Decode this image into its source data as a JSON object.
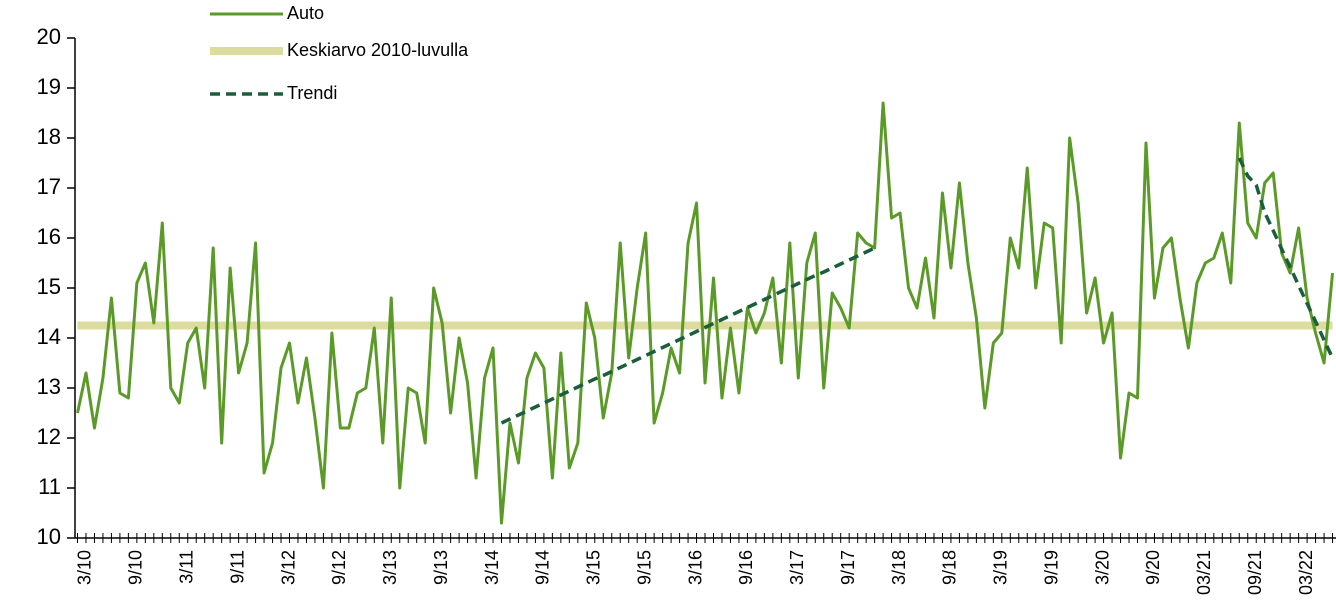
{
  "chart_data": {
    "type": "line",
    "categories": [
      null,
      "3/10",
      null,
      null,
      null,
      null,
      null,
      "9/10",
      null,
      null,
      null,
      null,
      null,
      "3/11",
      null,
      null,
      null,
      null,
      null,
      "9/11",
      null,
      null,
      null,
      null,
      null,
      "3/12",
      null,
      null,
      null,
      null,
      null,
      "9/12",
      null,
      null,
      null,
      null,
      null,
      "3/13",
      null,
      null,
      null,
      null,
      null,
      "9/13",
      null,
      null,
      null,
      null,
      null,
      "3/14",
      null,
      null,
      null,
      null,
      null,
      "9/14",
      null,
      null,
      null,
      null,
      null,
      "3/15",
      null,
      null,
      null,
      null,
      null,
      "9/15",
      null,
      null,
      null,
      null,
      null,
      "3/16",
      null,
      null,
      null,
      null,
      null,
      "9/16",
      null,
      null,
      null,
      null,
      null,
      "3/17",
      null,
      null,
      null,
      null,
      null,
      "9/17",
      null,
      null,
      null,
      null,
      null,
      "3/18",
      null,
      null,
      null,
      null,
      null,
      "9/18",
      null,
      null,
      null,
      null,
      null,
      "3/19",
      null,
      null,
      null,
      null,
      null,
      "9/19",
      null,
      null,
      null,
      null,
      null,
      "3/20",
      null,
      null,
      null,
      null,
      null,
      "9/20",
      null,
      null,
      null,
      null,
      null,
      "03/21",
      null,
      null,
      null,
      null,
      null,
      "09/21",
      null,
      null,
      null,
      null,
      null,
      "03/22",
      null,
      null,
      null
    ],
    "series": [
      {
        "name": "Auto",
        "color": "#5b9a28",
        "line_width": 3,
        "dash": "solid",
        "values": [
          12.5,
          13.3,
          12.2,
          13.2,
          14.8,
          12.9,
          12.8,
          15.1,
          15.5,
          14.3,
          16.3,
          13.0,
          12.7,
          13.9,
          14.2,
          13.0,
          15.8,
          11.9,
          15.4,
          13.3,
          13.9,
          15.9,
          11.3,
          11.9,
          13.4,
          13.9,
          12.7,
          13.6,
          12.4,
          11.0,
          14.1,
          12.2,
          12.2,
          12.9,
          13.0,
          14.2,
          11.9,
          14.8,
          11.0,
          13.0,
          12.9,
          11.9,
          15.0,
          14.3,
          12.5,
          14.0,
          13.1,
          11.2,
          13.2,
          13.8,
          10.3,
          12.3,
          11.5,
          13.2,
          13.7,
          13.4,
          11.2,
          13.7,
          11.4,
          11.9,
          14.7,
          14.0,
          12.4,
          13.3,
          15.9,
          13.6,
          15.0,
          16.1,
          12.3,
          12.9,
          13.8,
          13.3,
          15.9,
          16.7,
          13.1,
          15.2,
          12.8,
          14.2,
          12.9,
          14.6,
          14.1,
          14.5,
          15.2,
          13.5,
          15.9,
          13.2,
          15.5,
          16.1,
          13.0,
          14.9,
          14.6,
          14.2,
          16.1,
          15.9,
          15.8,
          18.7,
          16.4,
          16.5,
          15.0,
          14.6,
          15.6,
          14.4,
          16.9,
          15.4,
          17.1,
          15.5,
          14.4,
          12.6,
          13.9,
          14.1,
          16.0,
          15.4,
          17.4,
          15.0,
          16.3,
          16.2,
          13.9,
          18.0,
          16.7,
          14.5,
          15.2,
          13.9,
          14.5,
          11.6,
          12.9,
          12.8,
          17.9,
          14.8,
          15.8,
          16.0,
          14.8,
          13.8,
          15.1,
          15.5,
          15.6,
          16.1,
          15.1,
          18.3,
          16.3,
          16.0,
          17.1,
          17.3,
          15.7,
          15.3,
          16.2,
          14.8,
          14.1,
          13.5,
          15.3
        ]
      },
      {
        "name": "Keskiarvo 2010-luvulla",
        "color": "#dcdc9e",
        "line_width": 8,
        "dash": "solid",
        "values": [
          14.25,
          14.25,
          14.25,
          14.25,
          14.25,
          14.25,
          14.25,
          14.25,
          14.25,
          14.25,
          14.25,
          14.25,
          14.25,
          14.25,
          14.25,
          14.25,
          14.25,
          14.25,
          14.25,
          14.25,
          14.25,
          14.25,
          14.25,
          14.25,
          14.25,
          14.25,
          14.25,
          14.25,
          14.25,
          14.25,
          14.25,
          14.25,
          14.25,
          14.25,
          14.25,
          14.25,
          14.25,
          14.25,
          14.25,
          14.25,
          14.25,
          14.25,
          14.25,
          14.25,
          14.25,
          14.25,
          14.25,
          14.25,
          14.25,
          14.25,
          14.25,
          14.25,
          14.25,
          14.25,
          14.25,
          14.25,
          14.25,
          14.25,
          14.25,
          14.25,
          14.25,
          14.25,
          14.25,
          14.25,
          14.25,
          14.25,
          14.25,
          14.25,
          14.25,
          14.25,
          14.25,
          14.25,
          14.25,
          14.25,
          14.25,
          14.25,
          14.25,
          14.25,
          14.25,
          14.25,
          14.25,
          14.25,
          14.25,
          14.25,
          14.25,
          14.25,
          14.25,
          14.25,
          14.25,
          14.25,
          14.25,
          14.25,
          14.25,
          14.25,
          14.25,
          14.25,
          14.25,
          14.25,
          14.25,
          14.25,
          14.25,
          14.25,
          14.25,
          14.25,
          14.25,
          14.25,
          14.25,
          14.25,
          14.25,
          14.25,
          14.25,
          14.25,
          14.25,
          14.25,
          14.25,
          14.25,
          14.25,
          14.25,
          14.25,
          14.25,
          14.25,
          14.25,
          14.25,
          14.25,
          14.25,
          14.25,
          14.25,
          14.25,
          14.25,
          14.25,
          14.25,
          14.25,
          14.25,
          14.25,
          14.25,
          14.25,
          14.25,
          14.25,
          14.25,
          14.25,
          14.25,
          14.25,
          14.25,
          14.25,
          14.25,
          14.25,
          14.25,
          14.25,
          14.25
        ]
      },
      {
        "name": "Trendi",
        "color": "#1b5e3b",
        "line_width": 3.5,
        "dash": "dashed",
        "values": [
          null,
          null,
          null,
          null,
          null,
          null,
          null,
          null,
          null,
          null,
          null,
          null,
          null,
          null,
          null,
          null,
          null,
          null,
          null,
          null,
          null,
          null,
          null,
          null,
          null,
          null,
          null,
          null,
          null,
          null,
          null,
          null,
          null,
          null,
          null,
          null,
          null,
          null,
          null,
          null,
          null,
          null,
          null,
          null,
          null,
          null,
          null,
          null,
          null,
          null,
          12.3,
          12.38,
          12.46,
          12.54,
          12.62,
          12.7,
          12.78,
          12.86,
          12.94,
          13.02,
          13.1,
          13.18,
          13.25,
          13.33,
          13.41,
          13.49,
          13.57,
          13.65,
          13.73,
          13.81,
          13.89,
          13.97,
          14.05,
          14.13,
          14.21,
          14.29,
          14.37,
          14.45,
          14.53,
          14.61,
          14.69,
          14.77,
          14.85,
          14.93,
          15.01,
          15.09,
          15.17,
          15.25,
          15.32,
          15.4,
          15.48,
          15.56,
          15.64,
          15.72,
          15.8,
          null,
          null,
          null,
          null,
          null,
          null,
          null,
          null,
          null,
          null,
          null,
          null,
          null,
          null,
          null,
          null,
          null,
          null,
          null,
          null,
          null,
          null,
          null,
          null,
          null,
          null,
          null,
          null,
          null,
          null,
          null,
          null,
          null,
          null,
          null,
          null,
          null,
          null,
          null,
          null,
          null,
          null,
          17.6,
          17.24,
          17.06,
          16.51,
          16.15,
          15.78,
          15.42,
          15.05,
          14.69,
          14.33,
          13.96,
          13.6
        ]
      }
    ],
    "ylim": [
      10,
      20
    ],
    "yticks": [
      10,
      11,
      12,
      13,
      14,
      15,
      16,
      17,
      18,
      19,
      20
    ],
    "grid": false,
    "legend": "top-left"
  }
}
